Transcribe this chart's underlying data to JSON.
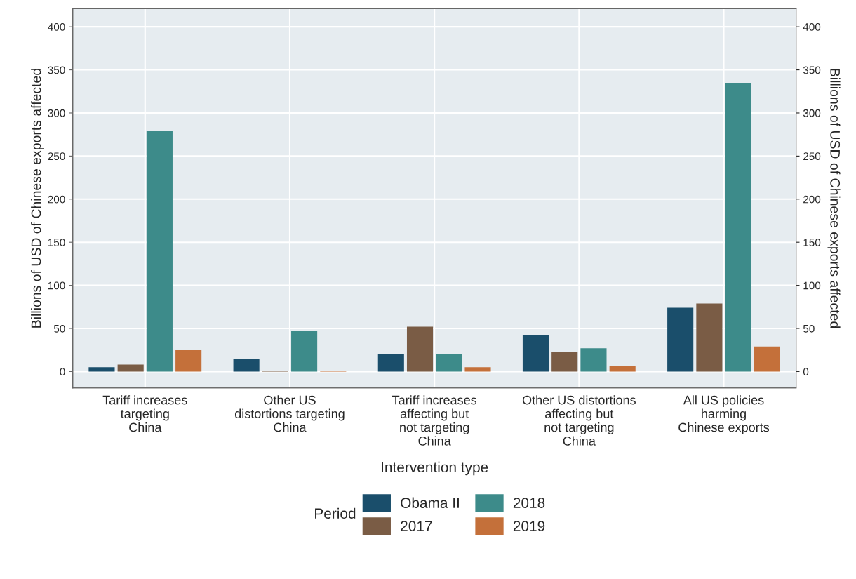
{
  "chart_data": {
    "type": "bar",
    "categories": [
      "Tariff increases\ntargeting\nChina",
      "Other US\ndistortions targeting\nChina",
      "Tariff increases\naffecting but\nnot targeting\nChina",
      "Other US distortions\naffecting but\nnot targeting\nChina",
      "All US policies\nharming\nChinese exports"
    ],
    "series": [
      {
        "name": "Obama II",
        "color": "#1a4e6b",
        "values": [
          5,
          15,
          20,
          42,
          74
        ]
      },
      {
        "name": "2017",
        "color": "#7a5c45",
        "values": [
          8,
          1,
          52,
          23,
          79
        ]
      },
      {
        "name": "2018",
        "color": "#3d8b8a",
        "values": [
          279,
          47,
          20,
          27,
          335
        ]
      },
      {
        "name": "2019",
        "color": "#c4703a",
        "values": [
          25,
          1,
          5,
          6,
          29
        ]
      }
    ],
    "xlabel": "Intervention type",
    "ylabel": "Billions of USD of Chinese exports affected",
    "y2label": "Billions of USD of Chinese exports affected",
    "legend_title": "Period",
    "ylim": [
      -19,
      421
    ],
    "yticks": [
      0,
      50,
      100,
      150,
      200,
      250,
      300,
      350,
      400
    ],
    "y2lim": [
      -19,
      421
    ],
    "y2ticks": [
      0,
      50,
      100,
      150,
      200,
      250,
      300,
      350,
      400
    ],
    "grid": true,
    "legend": "bottom"
  }
}
